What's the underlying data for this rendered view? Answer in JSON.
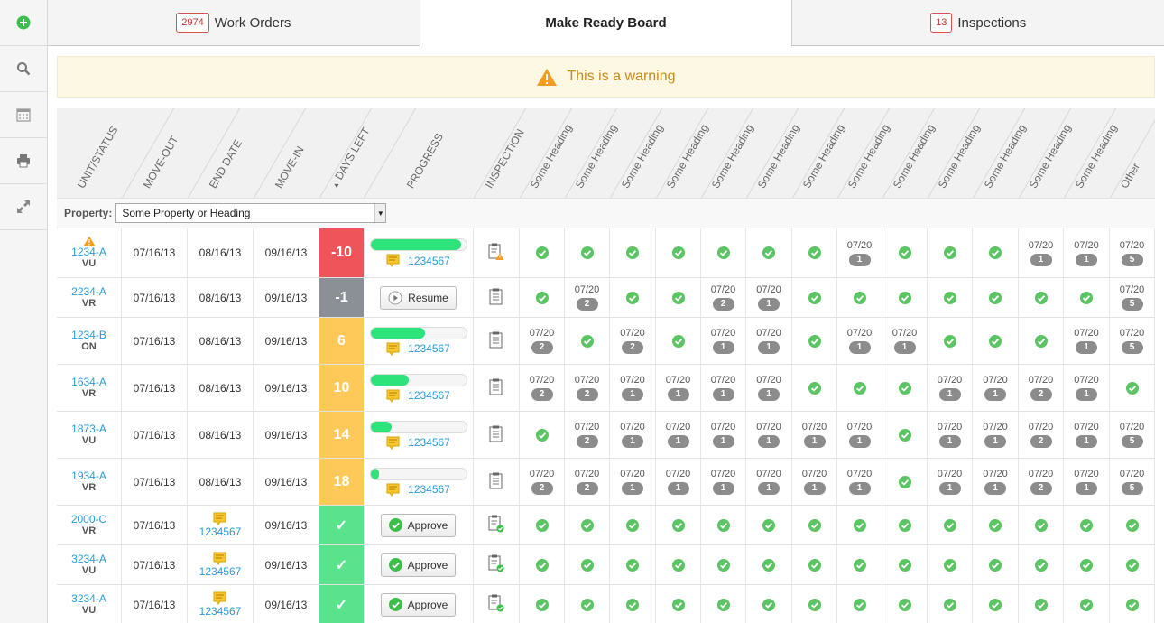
{
  "sidebar": {
    "items": [
      {
        "icon": "add-icon"
      },
      {
        "icon": "search-icon"
      },
      {
        "icon": "calendar-icon"
      },
      {
        "icon": "print-icon"
      },
      {
        "icon": "expand-icon"
      }
    ]
  },
  "tabs": [
    {
      "label": "Work Orders",
      "badge": "2974",
      "active": false
    },
    {
      "label": "Make Ready Board",
      "badge": "",
      "active": true
    },
    {
      "label": "Inspections",
      "badge": "13",
      "active": false
    }
  ],
  "warning": {
    "text": "This is a warning"
  },
  "columns": {
    "headers": [
      "UNIT/STATUS",
      "MOVE-OUT",
      "END DATE",
      "MOVE-IN",
      "DAYS LEFT",
      "PROGRESS",
      "INSPECTION",
      "Some Heading",
      "Some Heading",
      "Some Heading",
      "Some Heading",
      "Some Heading",
      "Some Heading",
      "Some Heading",
      "Some Heading",
      "Some Heading",
      "Some Heading",
      "Some Heading",
      "Some Heading",
      "Some Heading",
      "Other"
    ],
    "sort_indicator": "▲"
  },
  "filter": {
    "label": "Property:",
    "value": "Some Property or Heading"
  },
  "colors": {
    "red": "#f0545b",
    "gray": "#8a9095",
    "yellow": "#ffc95a",
    "green": "#5be28d",
    "link": "#2a9bd4",
    "check": "#5cc563"
  },
  "rows": [
    {
      "unit": "1234-A",
      "status": "VU",
      "alert": true,
      "move_out": "07/16/13",
      "end_date": "08/16/13",
      "end_note": "",
      "move_in": "09/16/13",
      "days": "-10",
      "days_color": "red",
      "progress": {
        "type": "bar",
        "pct": 95,
        "wo": "1234567"
      },
      "inspection": "warn",
      "cells": [
        "c",
        "c",
        "c",
        "c",
        "c",
        "c",
        "c",
        [
          "07/20",
          "1"
        ],
        "c",
        "c",
        "c",
        [
          "07/20",
          "1"
        ],
        [
          "07/20",
          "1"
        ],
        [
          "07/20",
          "5"
        ]
      ]
    },
    {
      "unit": "2234-A",
      "status": "VR",
      "alert": false,
      "move_out": "07/16/13",
      "end_date": "08/16/13",
      "end_note": "",
      "move_in": "09/16/13",
      "days": "-1",
      "days_color": "gray",
      "progress": {
        "type": "resume",
        "label": "Resume"
      },
      "inspection": "plain",
      "cells": [
        "c",
        [
          "07/20",
          "2"
        ],
        "c",
        "c",
        [
          "07/20",
          "2"
        ],
        [
          "07/20",
          "1"
        ],
        "c",
        "c",
        "c",
        "c",
        "c",
        "c",
        "c",
        [
          "07/20",
          "5"
        ]
      ]
    },
    {
      "unit": "1234-B",
      "status": "ON",
      "alert": false,
      "move_out": "07/16/13",
      "end_date": "08/16/13",
      "end_note": "",
      "move_in": "09/16/13",
      "days": "6",
      "days_color": "yellow",
      "progress": {
        "type": "bar",
        "pct": 57,
        "wo": "1234567"
      },
      "inspection": "plain",
      "cells": [
        [
          "07/20",
          "2"
        ],
        "c",
        [
          "07/20",
          "2"
        ],
        "c",
        [
          "07/20",
          "1"
        ],
        [
          "07/20",
          "1"
        ],
        "c",
        [
          "07/20",
          "1"
        ],
        [
          "07/20",
          "1"
        ],
        "c",
        "c",
        "c",
        [
          "07/20",
          "1"
        ],
        [
          "07/20",
          "5"
        ]
      ]
    },
    {
      "unit": "1634-A",
      "status": "VR",
      "alert": false,
      "move_out": "07/16/13",
      "end_date": "08/16/13",
      "end_note": "",
      "move_in": "09/16/13",
      "days": "10",
      "days_color": "yellow",
      "progress": {
        "type": "bar",
        "pct": 40,
        "wo": "1234567"
      },
      "inspection": "plain",
      "cells": [
        [
          "07/20",
          "2"
        ],
        [
          "07/20",
          "2"
        ],
        [
          "07/20",
          "1"
        ],
        [
          "07/20",
          "1"
        ],
        [
          "07/20",
          "1"
        ],
        [
          "07/20",
          "1"
        ],
        "c",
        "c",
        "c",
        [
          "07/20",
          "1"
        ],
        [
          "07/20",
          "1"
        ],
        [
          "07/20",
          "2"
        ],
        [
          "07/20",
          "1"
        ],
        "c"
      ]
    },
    {
      "unit": "1873-A",
      "status": "VU",
      "alert": false,
      "move_out": "07/16/13",
      "end_date": "08/16/13",
      "end_note": "",
      "move_in": "09/16/13",
      "days": "14",
      "days_color": "yellow",
      "progress": {
        "type": "bar",
        "pct": 22,
        "wo": "1234567"
      },
      "inspection": "plain",
      "cells": [
        "c",
        [
          "07/20",
          "2"
        ],
        [
          "07/20",
          "1"
        ],
        [
          "07/20",
          "1"
        ],
        [
          "07/20",
          "1"
        ],
        [
          "07/20",
          "1"
        ],
        [
          "07/20",
          "1"
        ],
        [
          "07/20",
          "1"
        ],
        "c",
        [
          "07/20",
          "1"
        ],
        [
          "07/20",
          "1"
        ],
        [
          "07/20",
          "2"
        ],
        [
          "07/20",
          "1"
        ],
        [
          "07/20",
          "5"
        ]
      ]
    },
    {
      "unit": "1934-A",
      "status": "VR",
      "alert": false,
      "move_out": "07/16/13",
      "end_date": "08/16/13",
      "end_note": "",
      "move_in": "09/16/13",
      "days": "18",
      "days_color": "yellow",
      "progress": {
        "type": "bar",
        "pct": 9,
        "wo": "1234567"
      },
      "inspection": "plain",
      "cells": [
        [
          "07/20",
          "2"
        ],
        [
          "07/20",
          "2"
        ],
        [
          "07/20",
          "1"
        ],
        [
          "07/20",
          "1"
        ],
        [
          "07/20",
          "1"
        ],
        [
          "07/20",
          "1"
        ],
        [
          "07/20",
          "1"
        ],
        [
          "07/20",
          "1"
        ],
        "c",
        [
          "07/20",
          "1"
        ],
        [
          "07/20",
          "1"
        ],
        [
          "07/20",
          "2"
        ],
        [
          "07/20",
          "1"
        ],
        [
          "07/20",
          "5"
        ]
      ]
    },
    {
      "unit": "2000-C",
      "status": "VR",
      "alert": false,
      "move_out": "07/16/13",
      "end_date": "",
      "end_note": "1234567",
      "move_in": "09/16/13",
      "days": "✓",
      "days_color": "green",
      "progress": {
        "type": "approve",
        "label": "Approve"
      },
      "inspection": "ok",
      "cells": [
        "c",
        "c",
        "c",
        "c",
        "c",
        "c",
        "c",
        "c",
        "c",
        "c",
        "c",
        "c",
        "c",
        "c"
      ]
    },
    {
      "unit": "3234-A",
      "status": "VU",
      "alert": false,
      "move_out": "07/16/13",
      "end_date": "",
      "end_note": "1234567",
      "move_in": "09/16/13",
      "days": "✓",
      "days_color": "green",
      "progress": {
        "type": "approve",
        "label": "Approve"
      },
      "inspection": "ok",
      "cells": [
        "c",
        "c",
        "c",
        "c",
        "c",
        "c",
        "c",
        "c",
        "c",
        "c",
        "c",
        "c",
        "c",
        "c"
      ]
    },
    {
      "unit": "3234-A",
      "status": "VU",
      "alert": false,
      "move_out": "07/16/13",
      "end_date": "",
      "end_note": "1234567",
      "move_in": "09/16/13",
      "days": "✓",
      "days_color": "green",
      "progress": {
        "type": "approve",
        "label": "Approve"
      },
      "inspection": "ok",
      "cells": [
        "c",
        "c",
        "c",
        "c",
        "c",
        "c",
        "c",
        "c",
        "c",
        "c",
        "c",
        "c",
        "c",
        "c"
      ]
    }
  ]
}
